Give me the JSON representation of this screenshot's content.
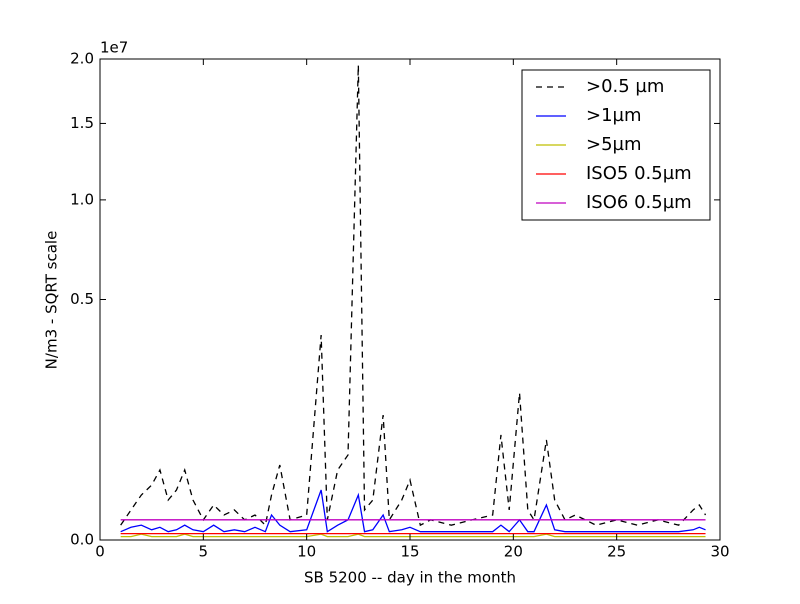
{
  "chart_data": {
    "type": "line",
    "xlabel": "SB 5200 -- day in the month",
    "ylabel": "N/m3 - SQRT scale",
    "y_offset_label": "1e7",
    "yscale": "sqrt",
    "grid": false,
    "legend": "upper right",
    "xlim": [
      0,
      30
    ],
    "xticks": [
      0,
      5,
      10,
      15,
      20,
      25,
      30
    ],
    "ylim": [
      0,
      2
    ],
    "yticks": [
      {
        "value": 0,
        "label": "0.0"
      },
      0.5,
      {
        "value": 1,
        "label": "1.0"
      },
      1.5,
      {
        "value": 2,
        "label": "2.0"
      }
    ],
    "x": [
      1,
      1.5,
      2,
      2.5,
      2.9,
      3.3,
      3.7,
      4.1,
      4.5,
      5,
      5.5,
      6,
      6.5,
      7,
      7.5,
      8,
      8.3,
      8.7,
      9.2,
      10,
      10.7,
      11,
      11.5,
      12,
      12.5,
      12.8,
      13.2,
      13.7,
      14,
      14.6,
      15,
      15.5,
      16,
      17,
      18,
      19,
      19.4,
      19.8,
      20.3,
      20.7,
      21,
      21.6,
      22,
      22.5,
      23,
      24,
      25,
      26,
      27,
      28,
      28.7,
      29,
      29.3
    ],
    "series": [
      {
        "name": ">0.5 µm",
        "color": "#000000",
        "dash": true,
        "values": [
          0.0019,
          0.0078,
          0.0175,
          0.0261,
          0.0424,
          0.0138,
          0.0216,
          0.0424,
          0.0138,
          0.0035,
          0.0106,
          0.0054,
          0.0078,
          0.0035,
          0.0054,
          0.0019,
          0.0175,
          0.0486,
          0.0035,
          0.0054,
          0.363,
          0.0035,
          0.0424,
          0.0625,
          1.95,
          0.0078,
          0.0138,
          0.135,
          0.0035,
          0.0138,
          0.0311,
          0.0019,
          0.0035,
          0.0019,
          0.0035,
          0.0054,
          0.0953,
          0.0078,
          0.187,
          0.0078,
          0.0035,
          0.0865,
          0.0138,
          0.0035,
          0.0054,
          0.0019,
          0.0035,
          0.0019,
          0.0035,
          0.0019,
          0.0078,
          0.0106,
          0.0054
        ]
      },
      {
        "name": ">1µm",
        "color": "#0000ff",
        "values": [
          0.0006,
          0.0014,
          0.0019,
          0.0009,
          0.0014,
          0.0006,
          0.0009,
          0.0019,
          0.0009,
          0.0006,
          0.0019,
          0.0006,
          0.0009,
          0.0006,
          0.0014,
          0.0006,
          0.0054,
          0.0019,
          0.0006,
          0.0009,
          0.0216,
          0.0006,
          0.0019,
          0.0035,
          0.0175,
          0.0006,
          0.0009,
          0.0054,
          0.0006,
          0.0009,
          0.0014,
          0.0006,
          0.0006,
          0.0006,
          0.0006,
          0.0006,
          0.0019,
          0.0006,
          0.0035,
          0.0006,
          0.0006,
          0.0106,
          0.0009,
          0.0006,
          0.0006,
          0.0006,
          0.0006,
          0.0006,
          0.0006,
          0.0006,
          0.0009,
          0.0014,
          0.0009
        ]
      },
      {
        "name": ">5µm",
        "color": "#bfbf00",
        "values": [
          0.0001,
          0.0001,
          0.0003,
          0.0001,
          0.0001,
          0.0001,
          0.0001,
          0.0003,
          0.0001,
          0.0001,
          0.0001,
          0.0001,
          0.0001,
          0.0001,
          0.0001,
          0.0001,
          0.0001,
          0.0001,
          0.0001,
          0.0001,
          0.0003,
          0.0001,
          0.0001,
          0.0001,
          0.0003,
          0.0001,
          0.0001,
          0.0001,
          0.0001,
          0.0001,
          0.0001,
          0.0001,
          0.0001,
          0.0001,
          0.0001,
          0.0001,
          0.0001,
          0.0001,
          0.0001,
          0.0001,
          0.0001,
          0.0003,
          0.0001,
          0.0001,
          0.0001,
          0.0001,
          0.0001,
          0.0001,
          0.0001,
          0.0001,
          0.0001,
          0.0001,
          0.0001
        ]
      },
      {
        "name": "ISO5 0.5µm",
        "color": "#ff0000",
        "x": [
          1,
          29.3
        ],
        "values": [
          0.000352,
          0.000352
        ]
      },
      {
        "name": "ISO6 0.5µm",
        "color": "#bf00bf",
        "x": [
          1,
          29.3
        ],
        "values": [
          0.00352,
          0.00352
        ]
      }
    ]
  }
}
